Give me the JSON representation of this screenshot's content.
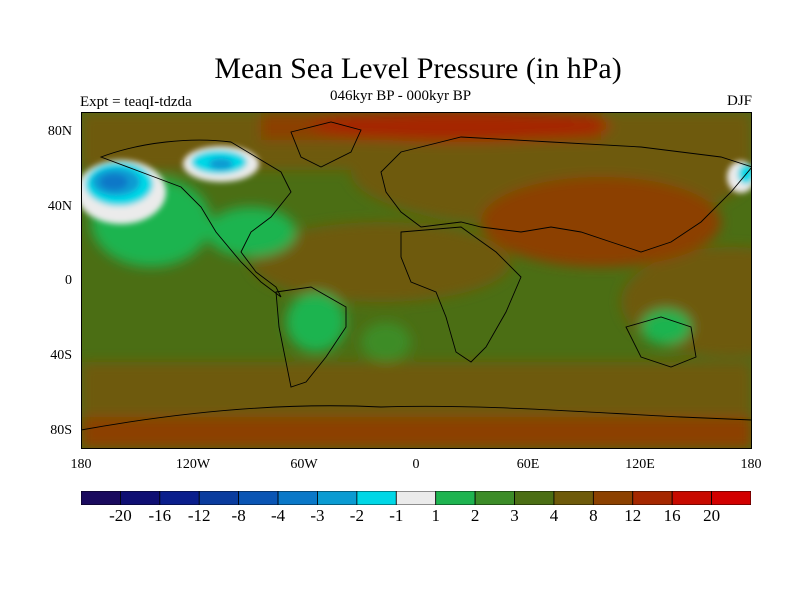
{
  "title": "Mean Sea Level Pressure (in hPa)",
  "subtitle": "046kyr BP - 000kyr BP",
  "experiment_label": "Expt = teaqI-tdzda",
  "season": "DJF",
  "lat_labels": [
    "80N",
    "40N",
    "0",
    "40S",
    "80S"
  ],
  "lon_labels": [
    "180",
    "120W",
    "60W",
    "0",
    "60E",
    "120E",
    "180"
  ],
  "colorbar": {
    "labels": [
      "-20",
      "-16",
      "-12",
      "-8",
      "-4",
      "-3",
      "-2",
      "-1",
      "1",
      "2",
      "3",
      "4",
      "8",
      "12",
      "16",
      "20"
    ],
    "colors": [
      "#1a0a5e",
      "#0f0f73",
      "#0a1e8c",
      "#0a3c9e",
      "#0a55b4",
      "#0a78c8",
      "#0a9bd2",
      "#00d7e6",
      "#ebebeb",
      "#1eb450",
      "#3c8c28",
      "#4b6e14",
      "#6e5a0a",
      "#8c4100",
      "#a52800",
      "#c80a00",
      "#d20000"
    ]
  },
  "chart_data": {
    "type": "heatmap",
    "title": "Mean Sea Level Pressure (in hPa)",
    "subtitle": "046kyr BP - 000kyr BP",
    "season": "DJF",
    "units": "hPa",
    "x_range": [
      -180,
      180
    ],
    "y_range": [
      -90,
      90
    ],
    "levels": [
      -20,
      -16,
      -12,
      -8,
      -4,
      -3,
      -2,
      -1,
      1,
      2,
      3,
      4,
      8,
      12,
      16,
      20
    ]
  }
}
